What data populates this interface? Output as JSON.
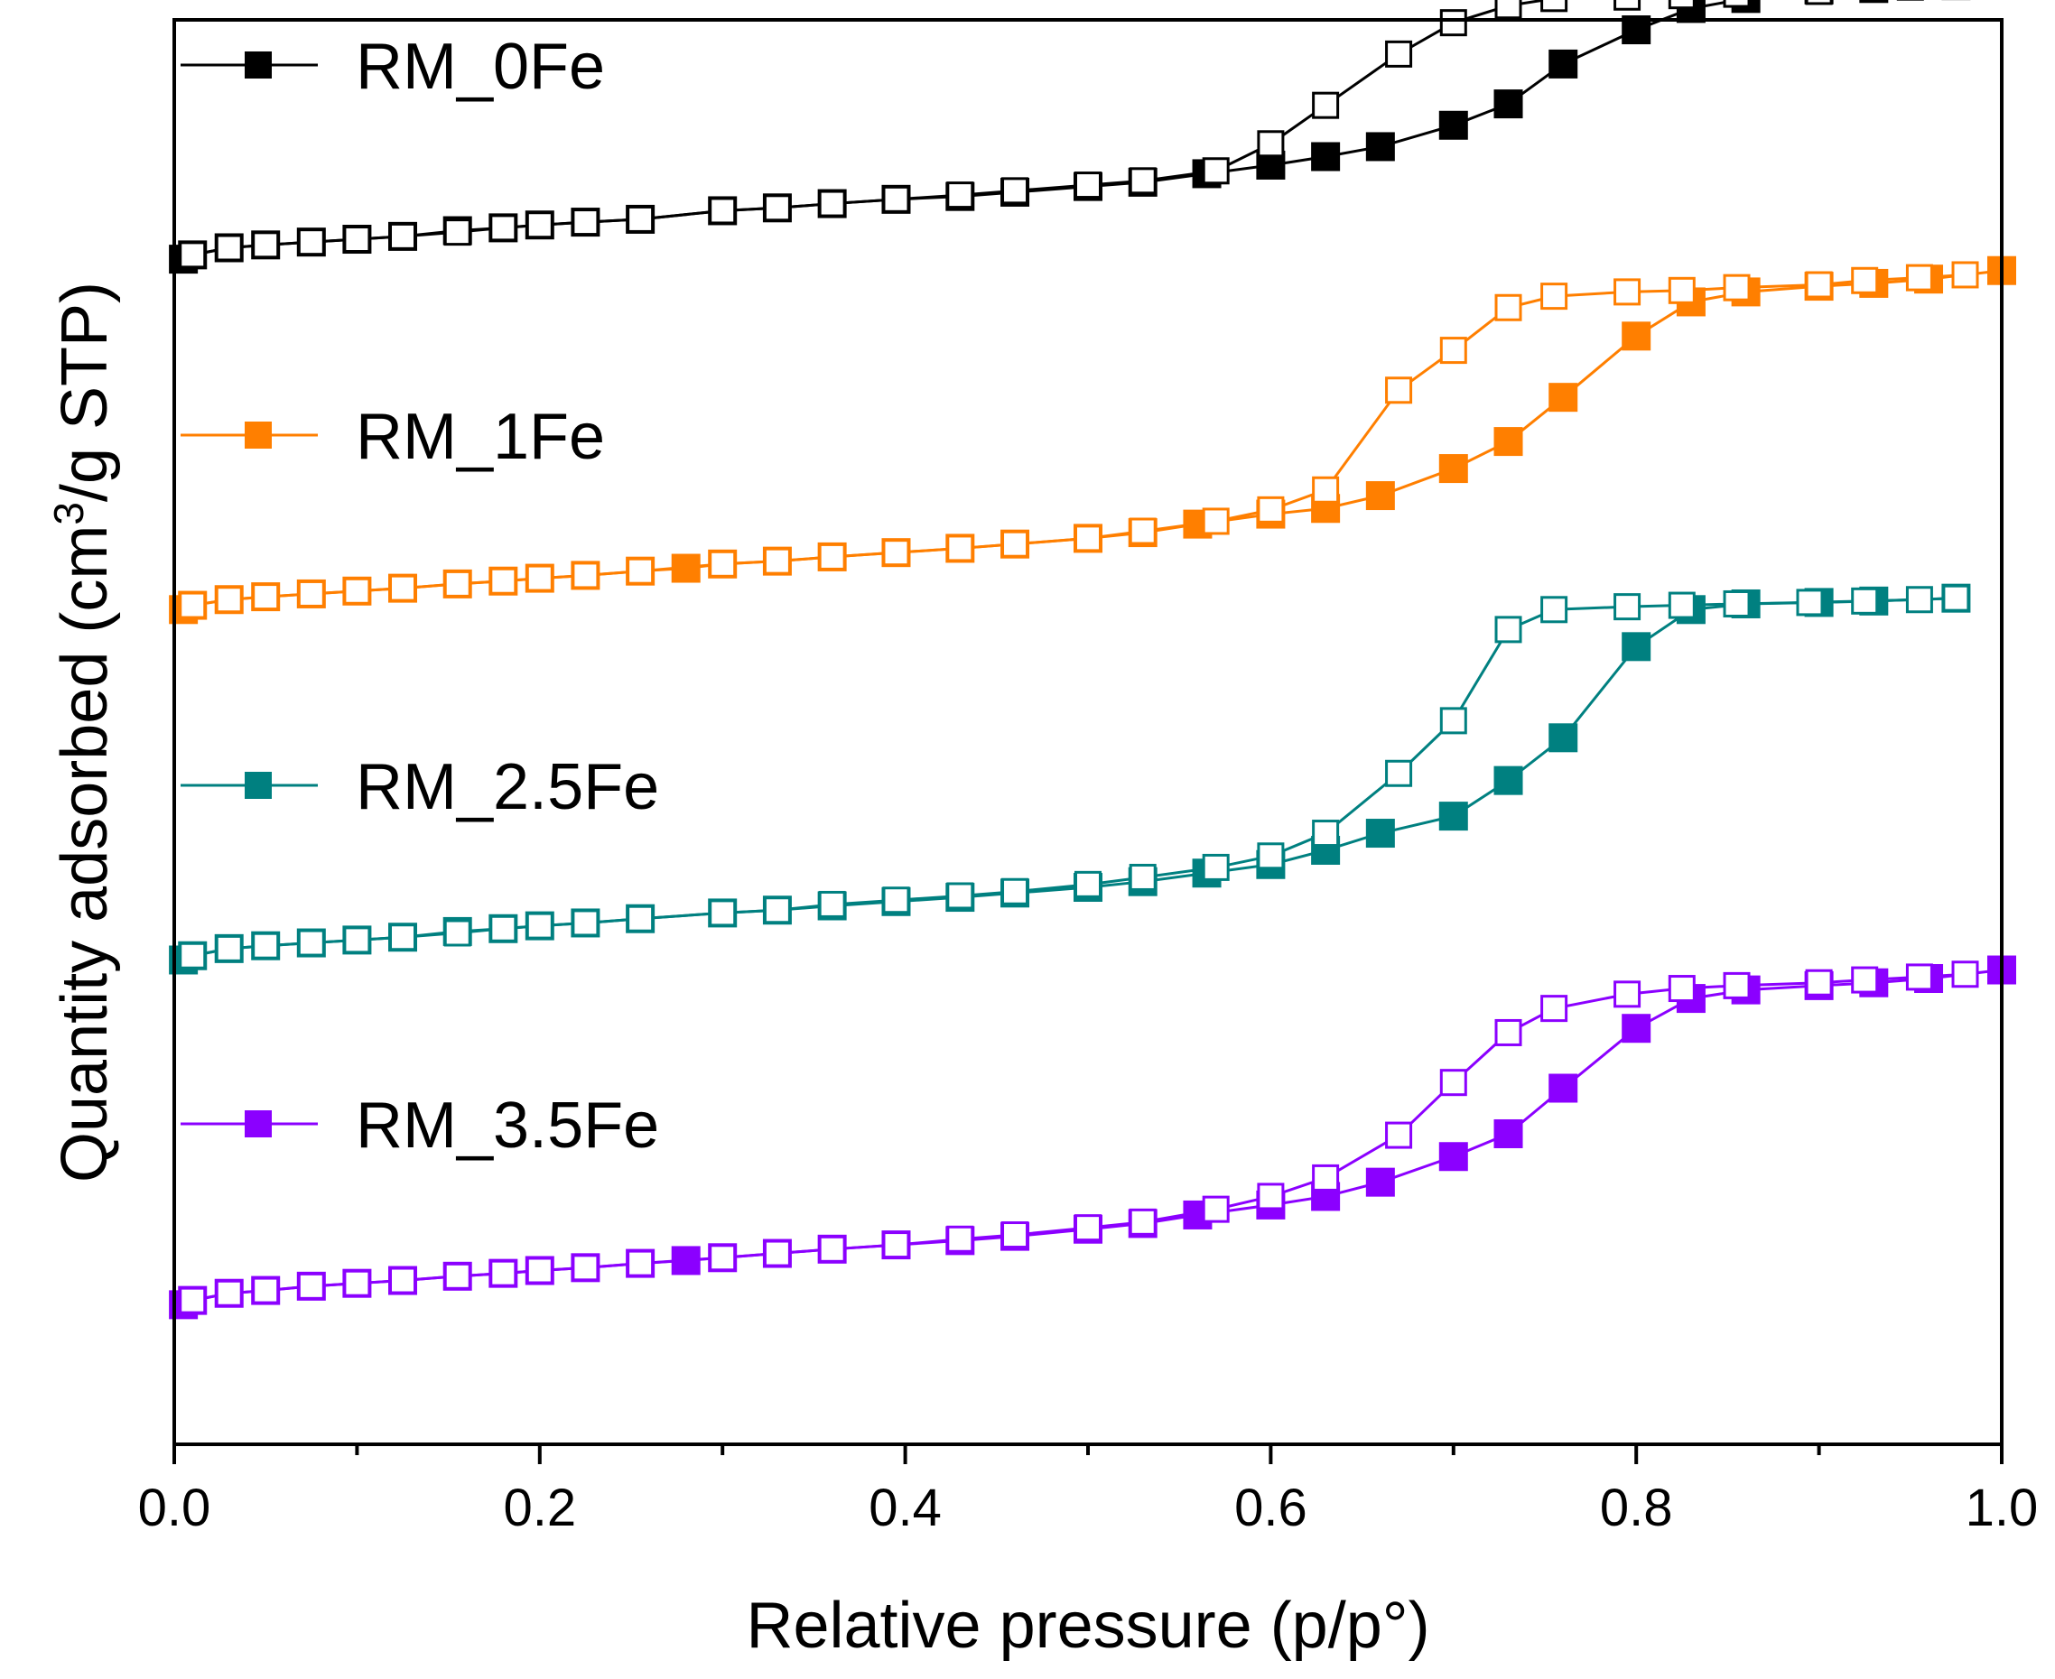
{
  "chart_data": {
    "type": "line",
    "title": "",
    "xlabel": "Relative pressure (p/p°)",
    "ylabel_parts": [
      "Quantity adsorbed (cm",
      "3",
      "/g STP)"
    ],
    "xlim": [
      0.0,
      1.0
    ],
    "ylim": [
      0,
      100
    ],
    "x_ticks": [
      "0.0",
      "0.2",
      "0.4",
      "0.6",
      "0.8",
      "1.0"
    ],
    "x_tick_values": [
      0.0,
      0.2,
      0.4,
      0.6,
      0.8,
      1.0
    ],
    "y_ticks_labeled": false,
    "grid": false,
    "legend_placement": "inline-left",
    "series": [
      {
        "name": "RM_0Fe",
        "color": "#000000",
        "adsorption": {
          "x": [
            0.005,
            0.01,
            0.03,
            0.05,
            0.075,
            0.1,
            0.125,
            0.155,
            0.18,
            0.2,
            0.225,
            0.255,
            0.3,
            0.33,
            0.36,
            0.395,
            0.43,
            0.46,
            0.5,
            0.53,
            0.565,
            0.6,
            0.63,
            0.66,
            0.7,
            0.73,
            0.76,
            0.8,
            0.83,
            0.86,
            0.9,
            0.93,
            0.975
          ],
          "y": [
            83.2,
            83.5,
            84.0,
            84.2,
            84.4,
            84.6,
            84.8,
            85.2,
            85.4,
            85.6,
            85.8,
            86.0,
            86.6,
            86.8,
            87.1,
            87.4,
            87.6,
            87.9,
            88.3,
            88.6,
            89.2,
            89.8,
            90.4,
            91.1,
            92.6,
            94.1,
            96.9,
            99.3,
            100.8,
            101.5,
            102.1,
            102.2,
            102.4
          ]
        },
        "desorption": {
          "x": [
            0.975,
            0.95,
            0.93,
            0.9,
            0.855,
            0.825,
            0.795,
            0.755,
            0.73,
            0.7,
            0.67,
            0.63,
            0.6,
            0.57,
            0.53,
            0.5,
            0.46,
            0.43,
            0.395,
            0.36,
            0.33,
            0.3,
            0.255,
            0.225,
            0.2,
            0.18,
            0.155,
            0.125,
            0.1,
            0.075,
            0.05,
            0.03,
            0.01
          ],
          "y": [
            102.4,
            102.3,
            102.2,
            102.0,
            101.8,
            101.7,
            101.6,
            101.5,
            101.0,
            99.8,
            97.6,
            94.0,
            91.3,
            89.4,
            88.7,
            88.4,
            88.0,
            87.7,
            87.4,
            87.1,
            86.8,
            86.6,
            86.0,
            85.8,
            85.6,
            85.4,
            85.1,
            84.8,
            84.6,
            84.4,
            84.2,
            84.0,
            83.5
          ]
        }
      },
      {
        "name": "RM_1Fe",
        "color": "#FF7F00",
        "adsorption": {
          "x": [
            0.005,
            0.01,
            0.03,
            0.05,
            0.075,
            0.1,
            0.125,
            0.155,
            0.18,
            0.2,
            0.225,
            0.255,
            0.28,
            0.3,
            0.33,
            0.36,
            0.395,
            0.43,
            0.46,
            0.5,
            0.53,
            0.56,
            0.6,
            0.63,
            0.66,
            0.7,
            0.73,
            0.76,
            0.8,
            0.83,
            0.86,
            0.9,
            0.93,
            0.96,
            1.0
          ],
          "y": [
            58.6,
            58.9,
            59.3,
            59.5,
            59.7,
            59.9,
            60.1,
            60.4,
            60.6,
            60.8,
            61.0,
            61.3,
            61.5,
            61.8,
            62.0,
            62.3,
            62.6,
            62.9,
            63.2,
            63.6,
            64.0,
            64.6,
            65.3,
            65.7,
            66.6,
            68.5,
            70.4,
            73.5,
            77.8,
            80.2,
            80.9,
            81.3,
            81.5,
            81.8,
            82.4
          ]
        },
        "desorption": {
          "x": [
            0.98,
            0.955,
            0.925,
            0.9,
            0.855,
            0.825,
            0.795,
            0.755,
            0.73,
            0.7,
            0.67,
            0.63,
            0.6,
            0.57,
            0.53,
            0.5,
            0.46,
            0.43,
            0.395,
            0.36,
            0.33,
            0.3,
            0.255,
            0.225,
            0.2,
            0.18,
            0.155,
            0.125,
            0.1,
            0.075,
            0.05,
            0.03,
            0.01
          ],
          "y": [
            82.1,
            81.9,
            81.7,
            81.4,
            81.2,
            81.0,
            80.9,
            80.6,
            79.8,
            76.8,
            74.0,
            67.0,
            65.6,
            64.8,
            64.1,
            63.6,
            63.2,
            62.9,
            62.6,
            62.3,
            62.0,
            61.8,
            61.3,
            61.0,
            60.8,
            60.6,
            60.4,
            60.1,
            59.9,
            59.7,
            59.5,
            59.3,
            58.9
          ]
        }
      },
      {
        "name": "RM_2.5Fe",
        "color": "#008080",
        "adsorption": {
          "x": [
            0.005,
            0.01,
            0.03,
            0.05,
            0.075,
            0.1,
            0.125,
            0.155,
            0.18,
            0.2,
            0.225,
            0.255,
            0.3,
            0.33,
            0.36,
            0.395,
            0.43,
            0.46,
            0.5,
            0.53,
            0.565,
            0.6,
            0.63,
            0.66,
            0.7,
            0.73,
            0.76,
            0.8,
            0.83,
            0.86,
            0.9,
            0.93,
            0.975
          ],
          "y": [
            34.0,
            34.3,
            34.8,
            35.0,
            35.2,
            35.4,
            35.6,
            36.0,
            36.2,
            36.4,
            36.6,
            36.9,
            37.3,
            37.5,
            37.8,
            38.1,
            38.4,
            38.7,
            39.1,
            39.5,
            40.1,
            40.7,
            41.7,
            42.9,
            44.1,
            46.6,
            49.6,
            56.0,
            58.6,
            59.0,
            59.1,
            59.2,
            59.4
          ]
        },
        "desorption": {
          "x": [
            0.975,
            0.955,
            0.925,
            0.895,
            0.855,
            0.825,
            0.795,
            0.755,
            0.73,
            0.7,
            0.67,
            0.63,
            0.6,
            0.57,
            0.53,
            0.5,
            0.46,
            0.43,
            0.395,
            0.36,
            0.33,
            0.3,
            0.255,
            0.225,
            0.2,
            0.18,
            0.155,
            0.125,
            0.1,
            0.075,
            0.05,
            0.03,
            0.01
          ],
          "y": [
            59.4,
            59.3,
            59.2,
            59.1,
            59.0,
            58.9,
            58.8,
            58.6,
            57.2,
            50.8,
            47.1,
            42.9,
            41.3,
            40.5,
            39.8,
            39.3,
            38.8,
            38.5,
            38.2,
            37.9,
            37.5,
            37.3,
            36.9,
            36.6,
            36.4,
            36.2,
            35.9,
            35.6,
            35.4,
            35.2,
            35.0,
            34.8,
            34.3
          ]
        }
      },
      {
        "name": "RM_3.5Fe",
        "color": "#8B00FF",
        "adsorption": {
          "x": [
            0.005,
            0.01,
            0.03,
            0.05,
            0.075,
            0.1,
            0.125,
            0.155,
            0.18,
            0.2,
            0.225,
            0.255,
            0.28,
            0.3,
            0.33,
            0.36,
            0.395,
            0.43,
            0.46,
            0.5,
            0.53,
            0.56,
            0.6,
            0.63,
            0.66,
            0.7,
            0.73,
            0.76,
            0.8,
            0.83,
            0.86,
            0.9,
            0.93,
            0.96,
            1.0
          ],
          "y": [
            9.8,
            10.1,
            10.6,
            10.8,
            11.1,
            11.3,
            11.5,
            11.8,
            12.0,
            12.2,
            12.4,
            12.7,
            12.9,
            13.1,
            13.4,
            13.7,
            14.0,
            14.3,
            14.6,
            15.1,
            15.5,
            16.1,
            16.8,
            17.4,
            18.4,
            20.2,
            21.8,
            25.0,
            29.2,
            31.3,
            31.9,
            32.2,
            32.4,
            32.7,
            33.3
          ]
        },
        "desorption": {
          "x": [
            0.98,
            0.955,
            0.925,
            0.9,
            0.855,
            0.825,
            0.795,
            0.755,
            0.73,
            0.7,
            0.67,
            0.63,
            0.6,
            0.57,
            0.53,
            0.5,
            0.46,
            0.43,
            0.395,
            0.36,
            0.33,
            0.3,
            0.255,
            0.225,
            0.2,
            0.18,
            0.155,
            0.125,
            0.1,
            0.075,
            0.05,
            0.03,
            0.01
          ],
          "y": [
            33.0,
            32.8,
            32.6,
            32.4,
            32.2,
            32.0,
            31.6,
            30.6,
            28.9,
            25.4,
            21.7,
            18.7,
            17.4,
            16.5,
            15.6,
            15.2,
            14.7,
            14.4,
            14.0,
            13.7,
            13.4,
            13.1,
            12.7,
            12.4,
            12.2,
            12.0,
            11.8,
            11.5,
            11.3,
            11.1,
            10.8,
            10.6,
            10.1
          ]
        }
      }
    ]
  }
}
